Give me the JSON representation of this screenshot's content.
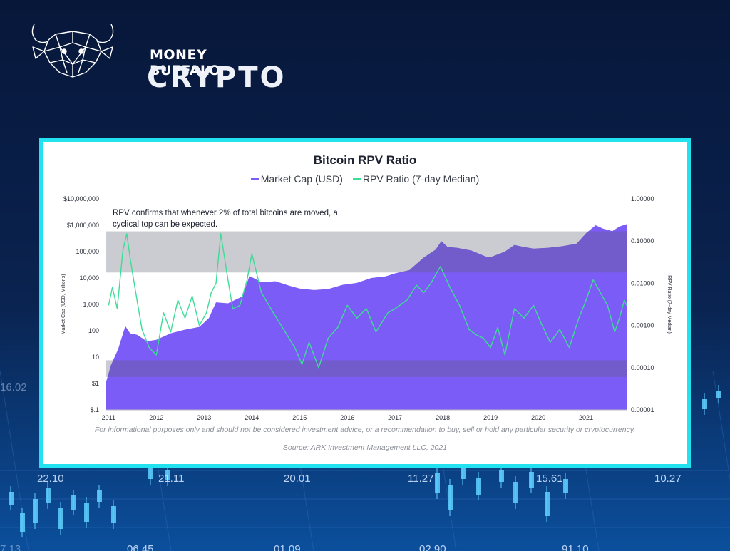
{
  "brand": {
    "top": "MONEY BUFFALO",
    "bottom": "CRYPTO",
    "logo_icon": "buffalo-head-logo"
  },
  "background": {
    "ticker_values": [
      "22.10",
      "21.11",
      "20.01",
      "11.27",
      "15.61",
      "10.27",
      "06.45",
      "01.09",
      "02.90",
      "91.10",
      "7.13",
      "16.02"
    ]
  },
  "colors": {
    "accent_border": "#22e2ef",
    "market_cap_fill": "#7c5cf6",
    "rpv_line": "#3ddc97",
    "band": "#5c5c74"
  },
  "chart_data": {
    "type": "area",
    "title": "Bitcoin RPV Ratio",
    "xlabel": "",
    "ylabel_left": "Market Cap (USD, Millions)",
    "ylabel_right": "RPV Ratio (7-day Median)",
    "annotation": "RPV confirms that whenever 2% of total bitcoins are moved, a cyclical top can be expected.",
    "x_ticks": [
      "2011",
      "2012",
      "2013",
      "2014",
      "2015",
      "2016",
      "2017",
      "2018",
      "2019",
      "2020",
      "2021"
    ],
    "y_left_ticks": [
      "$10,000,000",
      "$1,000,000",
      "100,000",
      "10,000",
      "1,000",
      "100",
      "10",
      "$1",
      "$.1"
    ],
    "y_right_ticks": [
      "1.00000",
      "0.10000",
      "0.01000",
      "0.00100",
      "0.00010",
      "0.00001"
    ],
    "y_left_range": [
      0.1,
      10000000
    ],
    "y_right_range": [
      1e-05,
      1
    ],
    "x_range": [
      2010.95,
      2021.85
    ],
    "log_scale": true,
    "grid": false,
    "legend_position": "top-center",
    "bands": [
      {
        "axis": "right",
        "range": [
          0.018,
          0.17
        ]
      },
      {
        "axis": "right",
        "range": [
          6e-05,
          0.00015
        ]
      }
    ],
    "series": [
      {
        "name": "Market Cap (USD)",
        "kind": "area",
        "axis": "left",
        "x": [
          2010.95,
          2011.05,
          2011.2,
          2011.35,
          2011.45,
          2011.6,
          2011.8,
          2012.0,
          2012.3,
          2012.6,
          2012.9,
          2013.1,
          2013.25,
          2013.5,
          2013.8,
          2013.95,
          2014.2,
          2014.5,
          2014.8,
          2015.0,
          2015.3,
          2015.6,
          2015.9,
          2016.2,
          2016.5,
          2016.8,
          2017.0,
          2017.3,
          2017.6,
          2017.85,
          2017.97,
          2018.1,
          2018.3,
          2018.6,
          2018.9,
          2019.0,
          2019.3,
          2019.5,
          2019.7,
          2019.9,
          2020.2,
          2020.5,
          2020.8,
          2021.0,
          2021.2,
          2021.35,
          2021.55,
          2021.7,
          2021.85
        ],
        "values": [
          1.2,
          5,
          20,
          150,
          80,
          70,
          40,
          45,
          80,
          110,
          140,
          300,
          1200,
          1100,
          2000,
          12000,
          7000,
          7500,
          5000,
          4000,
          3500,
          3800,
          5500,
          6500,
          10000,
          11500,
          15000,
          20000,
          60000,
          120000,
          250000,
          150000,
          140000,
          110000,
          65000,
          62000,
          100000,
          180000,
          150000,
          130000,
          140000,
          160000,
          200000,
          500000,
          1000000,
          750000,
          600000,
          900000,
          1100000
        ]
      },
      {
        "name": "RPV Ratio (7-day Median)",
        "kind": "line",
        "axis": "right",
        "x": [
          2011.0,
          2011.08,
          2011.18,
          2011.3,
          2011.38,
          2011.45,
          2011.55,
          2011.7,
          2011.85,
          2012.0,
          2012.15,
          2012.3,
          2012.45,
          2012.6,
          2012.75,
          2012.9,
          2013.05,
          2013.15,
          2013.25,
          2013.35,
          2013.5,
          2013.6,
          2013.75,
          2013.9,
          2014.0,
          2014.2,
          2014.45,
          2014.7,
          2014.9,
          2015.05,
          2015.2,
          2015.4,
          2015.6,
          2015.8,
          2016.0,
          2016.2,
          2016.4,
          2016.6,
          2016.85,
          2017.0,
          2017.25,
          2017.45,
          2017.6,
          2017.75,
          2017.95,
          2018.15,
          2018.35,
          2018.55,
          2018.7,
          2018.85,
          2019.0,
          2019.15,
          2019.3,
          2019.5,
          2019.7,
          2019.9,
          2020.05,
          2020.25,
          2020.45,
          2020.65,
          2020.85,
          2021.0,
          2021.15,
          2021.3,
          2021.45,
          2021.6,
          2021.7,
          2021.8,
          2021.85
        ],
        "values": [
          0.003,
          0.008,
          0.0025,
          0.06,
          0.15,
          0.04,
          0.008,
          0.0008,
          0.0003,
          0.0002,
          0.002,
          0.0007,
          0.004,
          0.0015,
          0.005,
          0.001,
          0.002,
          0.006,
          0.01,
          0.15,
          0.012,
          0.0025,
          0.003,
          0.012,
          0.05,
          0.006,
          0.002,
          0.0007,
          0.0003,
          0.00012,
          0.0004,
          0.0001,
          0.0005,
          0.0009,
          0.003,
          0.0015,
          0.0025,
          0.0007,
          0.002,
          0.0025,
          0.004,
          0.009,
          0.006,
          0.01,
          0.025,
          0.008,
          0.003,
          0.0008,
          0.0006,
          0.0005,
          0.0003,
          0.0009,
          0.0002,
          0.0025,
          0.0015,
          0.003,
          0.0012,
          0.0004,
          0.0008,
          0.0003,
          0.0015,
          0.004,
          0.012,
          0.006,
          0.003,
          0.0007,
          0.0015,
          0.004,
          0.003
        ]
      }
    ]
  },
  "footer": {
    "disclaimer": "For informational purposes only and should not be considered investment advice, or a recommendation to buy, sell or hold any particular security or cryptocurrency.",
    "source": "Source: ARK Investment Management LLC, 2021"
  }
}
